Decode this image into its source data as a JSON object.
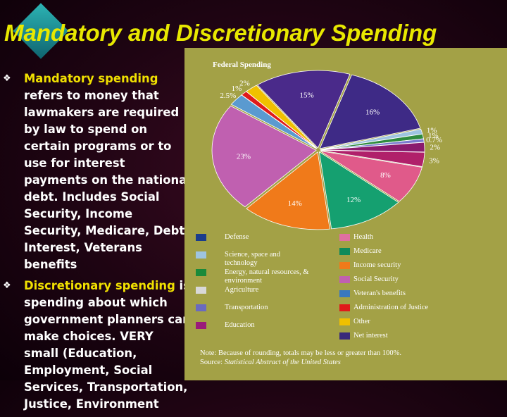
{
  "slide": {
    "title": "Mandatory and Discretionary Spending",
    "bullet1_kw": "Mandatory spending",
    "bullet1_rest": " refers to money that lawmakers are required by law to spend on certain programs or to use for interest payments on the national debt.  Includes Social Security, Income Security, Medicare, Debt Interest, Veterans benefits",
    "bullet2_kw": "Discretionary spending",
    "bullet2_rest": " is spending about which government planners can make choices. VERY small (Education, Employment, Social Services, Transportation, Justice, Environment",
    "bullet_marker": "❖"
  },
  "chart_data": {
    "type": "pie",
    "title": "Federal Spending",
    "slices": [
      {
        "label": "Defense",
        "value": 15,
        "display": "15%",
        "color": "#4a2a8a"
      },
      {
        "label": "Health",
        "value": 16,
        "display": "16%",
        "color": "#3e2a86"
      },
      {
        "label": "Science, space and technology",
        "value": 1,
        "display": "1%",
        "color": "#9ec4e0"
      },
      {
        "label": "Energy, natural resources, & environment",
        "value": 1,
        "display": "1%",
        "color": "#2e8b3e"
      },
      {
        "label": "Agriculture",
        "value": 0.7,
        "display": "0.7%",
        "color": "#7a7ad0"
      },
      {
        "label": "Transportation",
        "value": 2,
        "display": "2%",
        "color": "#8a1a6e"
      },
      {
        "label": "Veteran's benefits",
        "value": 3,
        "display": "3%",
        "color": "#b0206a"
      },
      {
        "label": "Health",
        "value": 8,
        "display": "8%",
        "color": "#e05a8a"
      },
      {
        "label": "Medicare",
        "value": 12,
        "display": "12%",
        "color": "#15a070"
      },
      {
        "label": "Income security",
        "value": 14,
        "display": "14%",
        "color": "#f07a1a"
      },
      {
        "label": "Social Security",
        "value": 23,
        "display": "23%",
        "color": "#c060b0"
      },
      {
        "label": "Administration of Justice",
        "value": 2.5,
        "display": "2.5%",
        "color": "#5a9ad0"
      },
      {
        "label": "Other",
        "value": 1,
        "display": "1%",
        "color": "#e01a1a"
      },
      {
        "label": "Net interest",
        "value": 2,
        "display": "2%",
        "color": "#f0c000"
      }
    ],
    "legend": {
      "left": [
        {
          "label": "Defense",
          "color": "#1a3c8c"
        },
        {
          "label": "Science, space and technology",
          "color": "#9ec4e0"
        },
        {
          "label": "Energy, natural resources, & environment",
          "color": "#1a8a3a"
        },
        {
          "label": "Agriculture",
          "color": "#d8d8d8"
        },
        {
          "label": "Transportation",
          "color": "#6a6ac0"
        },
        {
          "label": "Education",
          "color": "#9a1a7a"
        }
      ],
      "right": [
        {
          "label": "Health",
          "color": "#e070a0"
        },
        {
          "label": "Medicare",
          "color": "#0e8a5a"
        },
        {
          "label": "Income security",
          "color": "#f07a1a"
        },
        {
          "label": "Social Security",
          "color": "#c060b0"
        },
        {
          "label": "Veteran's benefits",
          "color": "#3a78c0"
        },
        {
          "label": "Administration of Justice",
          "color": "#e01a1a"
        },
        {
          "label": "Other",
          "color": "#f0c000"
        },
        {
          "label": "Net interest",
          "color": "#3a2a7a"
        }
      ]
    },
    "note": "Note: Because of rounding, totals may be less or greater than 100%.",
    "source_prefix": "Source: ",
    "source": "Statistical Abstract of the United States"
  }
}
